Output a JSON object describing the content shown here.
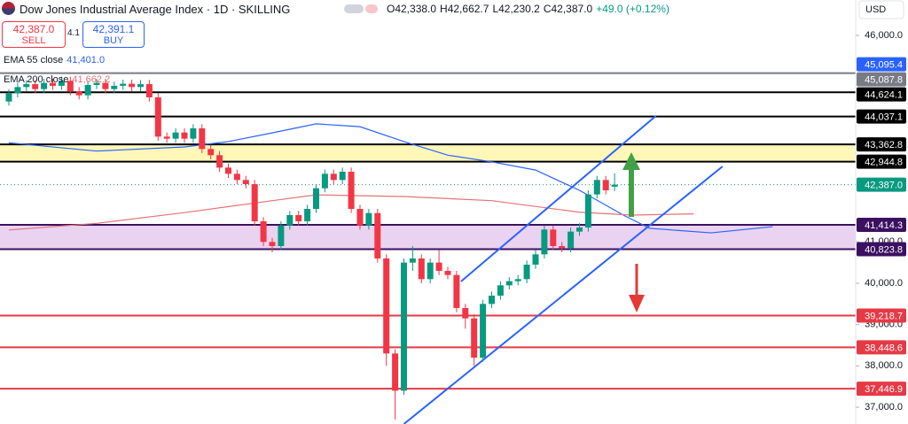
{
  "header": {
    "title": "Dow Jones Industrial Average Index · 1D · SKILLING",
    "ohlc": [
      "O42,338.0",
      "H42,662.7",
      "L42,230.2",
      "C42,387.0",
      "+49.0 (+0.12%)"
    ],
    "sell": {
      "price": "42,387.0",
      "label": "SELL"
    },
    "spread": "4.1",
    "buy": {
      "price": "42,391.1",
      "label": "BUY"
    },
    "currency": "USD"
  },
  "chart_data": {
    "type": "candlestick",
    "ylim": [
      36593,
      46857
    ],
    "yticks": [
      {
        "value": 46000,
        "label": "46,000.0"
      },
      {
        "value": 41000,
        "label": "41,000.0"
      },
      {
        "value": 40000,
        "label": "40,000.0"
      },
      {
        "value": 39000,
        "label": "39,000.0"
      },
      {
        "value": 38000,
        "label": "38,000.0"
      },
      {
        "value": 37000,
        "label": "37,000.0"
      }
    ],
    "grid": false,
    "up_color": "#089981",
    "down_color": "#f23645",
    "open": [
      44400,
      44600,
      44750,
      44820,
      44700,
      44850,
      44780,
      44900,
      44650,
      44550,
      44800,
      44850,
      44700,
      44780,
      44830,
      44750,
      44820,
      44500,
      43550,
      43500,
      43650,
      43500,
      43750,
      43250,
      43100,
      42800,
      42650,
      42500,
      42400,
      41500,
      41000,
      40900,
      41400,
      41650,
      41500,
      41800,
      42300,
      42650,
      42500,
      42700,
      41800,
      41400,
      41700,
      40600,
      38300,
      37400,
      40500,
      40600,
      40100,
      40500,
      40300,
      40200,
      39400,
      39150,
      38200,
      39500,
      39700,
      39950,
      40050,
      40100,
      40450,
      40700,
      41300,
      40900,
      40850,
      41250,
      41350,
      42150,
      42500,
      42338
    ],
    "high": [
      44700,
      44850,
      44920,
      44920,
      44950,
      44950,
      45000,
      45000,
      44750,
      44900,
      44950,
      44950,
      44880,
      44930,
      44930,
      44920,
      44920,
      44600,
      43650,
      43750,
      43750,
      43850,
      43850,
      43350,
      43200,
      42900,
      42750,
      42600,
      42500,
      41600,
      41100,
      41500,
      41750,
      41750,
      41900,
      42400,
      42750,
      42750,
      42800,
      42800,
      41900,
      41800,
      41800,
      40700,
      38400,
      40600,
      40900,
      40700,
      40600,
      40800,
      40400,
      40300,
      39500,
      39250,
      39600,
      39800,
      40050,
      40150,
      40200,
      40550,
      40800,
      41400,
      41400,
      41000,
      41350,
      41450,
      42250,
      42600,
      42600,
      42662.7
    ],
    "low": [
      44300,
      44500,
      44650,
      44600,
      44600,
      44680,
      44680,
      44550,
      44450,
      44450,
      44700,
      44600,
      44600,
      44680,
      44650,
      44650,
      44400,
      43450,
      43400,
      43400,
      43400,
      43400,
      43150,
      43000,
      42700,
      42550,
      42400,
      42300,
      41400,
      40900,
      40750,
      40800,
      41300,
      41400,
      41400,
      41700,
      42200,
      42400,
      42400,
      41700,
      41300,
      41300,
      40500,
      38000,
      36700,
      37300,
      40300,
      40000,
      40000,
      40200,
      40100,
      39300,
      38900,
      38000,
      38100,
      39400,
      39600,
      39850,
      39950,
      40000,
      40350,
      40600,
      40800,
      40750,
      40750,
      41150,
      41250,
      42050,
      42150,
      42230.2
    ],
    "close": [
      44600,
      44750,
      44820,
      44700,
      44850,
      44780,
      44900,
      44650,
      44550,
      44800,
      44850,
      44700,
      44780,
      44830,
      44750,
      44820,
      44500,
      43550,
      43500,
      43650,
      43500,
      43750,
      43250,
      43100,
      42800,
      42650,
      42500,
      42400,
      41500,
      41000,
      40900,
      41400,
      41650,
      41500,
      41800,
      42300,
      42650,
      42500,
      42700,
      41800,
      41400,
      41700,
      40600,
      38300,
      37400,
      40500,
      40600,
      40100,
      40500,
      40300,
      40200,
      39400,
      39150,
      38200,
      39500,
      39700,
      39950,
      40050,
      40100,
      40450,
      40700,
      41300,
      40900,
      40850,
      41250,
      41350,
      42150,
      42500,
      42250,
      42387
    ],
    "indicators": [
      {
        "name": "EMA 55 close",
        "last": {
          "value": 41401.0,
          "label": "41,401.0"
        },
        "color": "#2962ff",
        "x": [
          0,
          10,
          20,
          25,
          30,
          35,
          40,
          45,
          50,
          55,
          60,
          65,
          70,
          73,
          80,
          87
        ],
        "values": [
          43400,
          43200,
          43300,
          43430,
          43640,
          43860,
          43790,
          43430,
          43100,
          42940,
          42740,
          42250,
          41650,
          41330,
          41220,
          41370
        ]
      },
      {
        "name": "EMA 200 close",
        "last": {
          "value": 41662.2,
          "label": "41,662.2"
        },
        "color": "#e57373",
        "x": [
          0,
          10,
          20,
          30,
          35,
          45,
          55,
          65,
          71,
          78
        ],
        "values": [
          41290,
          41450,
          41710,
          42000,
          42140,
          42100,
          42000,
          41720,
          41650,
          41680
        ]
      }
    ],
    "trendlines": [
      {
        "color": "#2962ff",
        "x": [
          51.5,
          73.7
        ],
        "values": [
          40043,
          44050
        ]
      },
      {
        "color": "#2962ff",
        "x": [
          45,
          81.3
        ],
        "values": [
          36593,
          42828
        ]
      }
    ],
    "levels": [
      {
        "value": 45087.8,
        "label": "45,087.8",
        "color": "#787b86"
      },
      {
        "value": 44624.1,
        "label": "44,624.1",
        "color": "#000000"
      },
      {
        "value": 44037.1,
        "label": "44,037.1",
        "color": "#000000"
      },
      {
        "value": 39218.7,
        "label": "39,218.7",
        "color": "#e53946"
      },
      {
        "value": 38448.6,
        "label": "38,448.6",
        "color": "#e53946"
      },
      {
        "value": 37446.9,
        "label": "37,446.9",
        "color": "#e53946"
      }
    ],
    "zones": [
      {
        "fill": "#fff7b8",
        "line_color": "#000000",
        "high": {
          "value": 43362.8,
          "label": "43,362.8"
        },
        "low": {
          "value": 42944.8,
          "label": "42,944.8"
        }
      },
      {
        "fill": "#ead3f0",
        "line_color": "#3b1060",
        "high": {
          "value": 41414.3,
          "label": "41,414.3"
        },
        "low": {
          "value": 40823.8,
          "label": "40,823.8"
        }
      }
    ],
    "price_labels": [
      {
        "value": 45095.4,
        "label": "45,095.4",
        "color": "#2962ff",
        "line": false
      },
      {
        "value": 42387.0,
        "label": "42,387.0",
        "color": "#089981",
        "line": true
      }
    ]
  }
}
